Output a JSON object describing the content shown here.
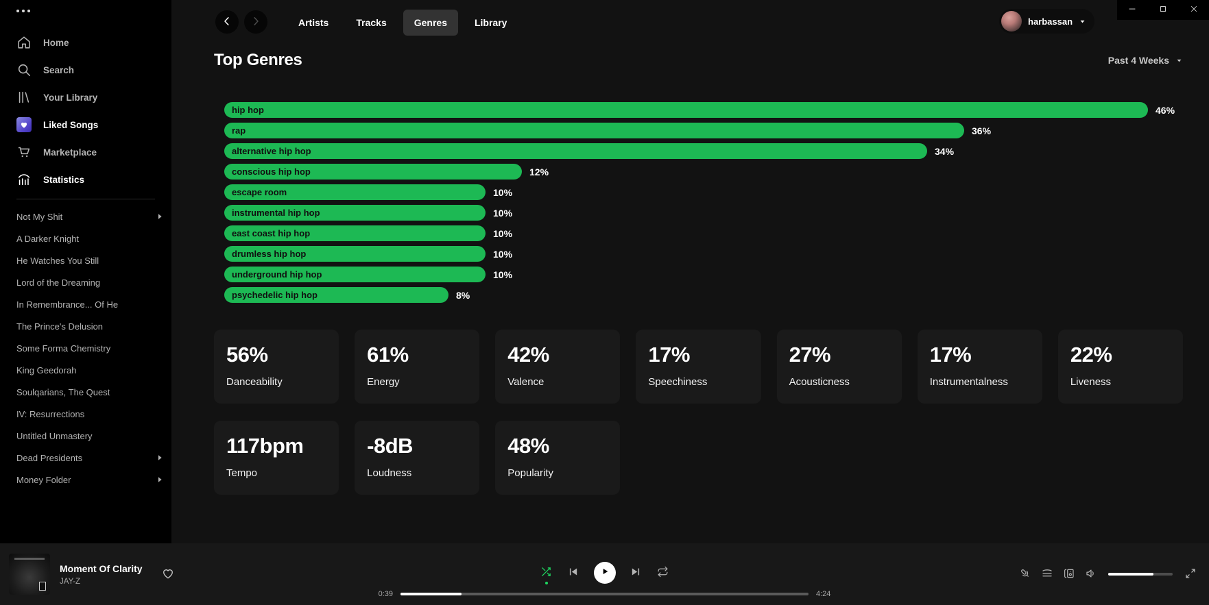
{
  "colors": {
    "accent_green": "#1db954",
    "shuffle_green": "#1ed760",
    "page_bg": "#121212",
    "sidebar_bg": "#000000",
    "card_bg": "#1a1a1a",
    "player_bg": "#181818",
    "muted_text": "#b3b3b3"
  },
  "sidebar": {
    "menu_icon": "ellipsis-icon",
    "nav": [
      {
        "label": "Home",
        "icon": "home-icon",
        "active": false
      },
      {
        "label": "Search",
        "icon": "search-icon",
        "active": false
      },
      {
        "label": "Your Library",
        "icon": "library-icon",
        "active": false
      },
      {
        "label": "Liked Songs",
        "icon": "liked-songs-icon",
        "active": true
      },
      {
        "label": "Marketplace",
        "icon": "cart-icon",
        "active": false
      },
      {
        "label": "Statistics",
        "icon": "stats-icon",
        "active": true
      }
    ],
    "playlists": [
      {
        "label": "Not My Shit",
        "expandable": true
      },
      {
        "label": "A Darker Knight",
        "expandable": false
      },
      {
        "label": "He Watches You Still",
        "expandable": false
      },
      {
        "label": "Lord of the Dreaming",
        "expandable": false
      },
      {
        "label": "In Remembrance... Of He",
        "expandable": false
      },
      {
        "label": "The Prince's Delusion",
        "expandable": false
      },
      {
        "label": "Some Forma Chemistry",
        "expandable": false
      },
      {
        "label": "King Geedorah",
        "expandable": false
      },
      {
        "label": "Soulqarians, The Quest",
        "expandable": false
      },
      {
        "label": "IV: Resurrections",
        "expandable": false
      },
      {
        "label": "Untitled Unmastery",
        "expandable": false
      },
      {
        "label": "Dead Presidents",
        "expandable": true
      },
      {
        "label": "Money Folder",
        "expandable": true
      }
    ]
  },
  "header": {
    "back_icon": "chevron-left-icon",
    "forward_icon": "chevron-right-icon",
    "tabs": [
      {
        "label": "Artists",
        "active": false
      },
      {
        "label": "Tracks",
        "active": false
      },
      {
        "label": "Genres",
        "active": true
      },
      {
        "label": "Library",
        "active": false
      }
    ],
    "user": {
      "name": "harbassan",
      "caret_icon": "caret-down-icon"
    }
  },
  "window_controls": [
    "minimize-icon",
    "maximize-icon",
    "close-icon"
  ],
  "page": {
    "title": "Top Genres",
    "time_range": "Past 4 Weeks"
  },
  "chart_data": {
    "type": "bar",
    "orientation": "horizontal",
    "title": "Top Genres",
    "unit": "percent",
    "bar_color": "#1db954",
    "categories": [
      "hip hop",
      "rap",
      "alternative hip hop",
      "conscious hip hop",
      "escape room",
      "instrumental hip hop",
      "east coast hip hop",
      "drumless hip hop",
      "underground hip hop",
      "psychedelic hip hop"
    ],
    "values": [
      46,
      36,
      34,
      12,
      10,
      10,
      10,
      10,
      10,
      8
    ],
    "value_labels": [
      "46%",
      "36%",
      "34%",
      "12%",
      "10%",
      "10%",
      "10%",
      "10%",
      "10%",
      "8%"
    ],
    "xlim": [
      0,
      46
    ]
  },
  "stats": {
    "row1": [
      {
        "value": "56%",
        "label": "Danceability"
      },
      {
        "value": "61%",
        "label": "Energy"
      },
      {
        "value": "42%",
        "label": "Valence"
      },
      {
        "value": "17%",
        "label": "Speechiness"
      },
      {
        "value": "27%",
        "label": "Acousticness"
      },
      {
        "value": "17%",
        "label": "Instrumentalness"
      },
      {
        "value": "22%",
        "label": "Liveness"
      }
    ],
    "row2": [
      {
        "value": "117bpm",
        "label": "Tempo"
      },
      {
        "value": "-8dB",
        "label": "Loudness"
      },
      {
        "value": "48%",
        "label": "Popularity"
      }
    ]
  },
  "player": {
    "track": "Moment Of Clarity",
    "artist": "JAY-Z",
    "like_icon": "heart-outline-icon",
    "elapsed": "0:39",
    "duration": "4:24",
    "progress_percent": 15,
    "volume_percent": 70,
    "shuffle_active": true,
    "controls": [
      "shuffle-icon",
      "previous-icon",
      "play-icon",
      "next-icon",
      "repeat-icon"
    ],
    "right_controls": [
      "lyrics-mic-icon",
      "queue-icon",
      "devices-icon",
      "volume-icon",
      "fullscreen-icon"
    ]
  }
}
